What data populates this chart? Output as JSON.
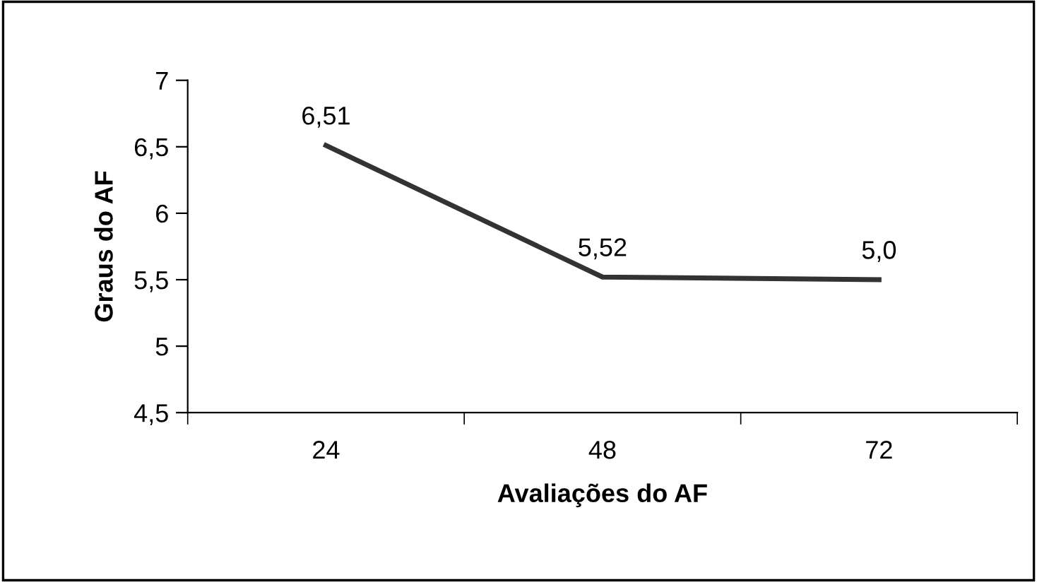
{
  "chart_data": {
    "type": "line",
    "xlabel": "Avaliações do AF",
    "ylabel": "Graus do AF",
    "categories": [
      "24",
      "48",
      "72"
    ],
    "series": [
      {
        "color": "#333333",
        "values": [
          6.51,
          5.52,
          5.5
        ],
        "value_labels": [
          "6,51",
          "5,52",
          null
        ]
      }
    ],
    "annotations": [
      {
        "text": "5,0",
        "x": "72",
        "y": 5.5
      }
    ],
    "ylim": [
      4.5,
      7
    ],
    "yticks": [
      {
        "value": 4.5,
        "label": "4,5"
      },
      5,
      {
        "value": 5.5,
        "label": "5,5"
      },
      6,
      {
        "value": 6.5,
        "label": "6,5"
      },
      7
    ],
    "grid": false,
    "legend": false,
    "marker": "none",
    "line_style": "solid"
  }
}
